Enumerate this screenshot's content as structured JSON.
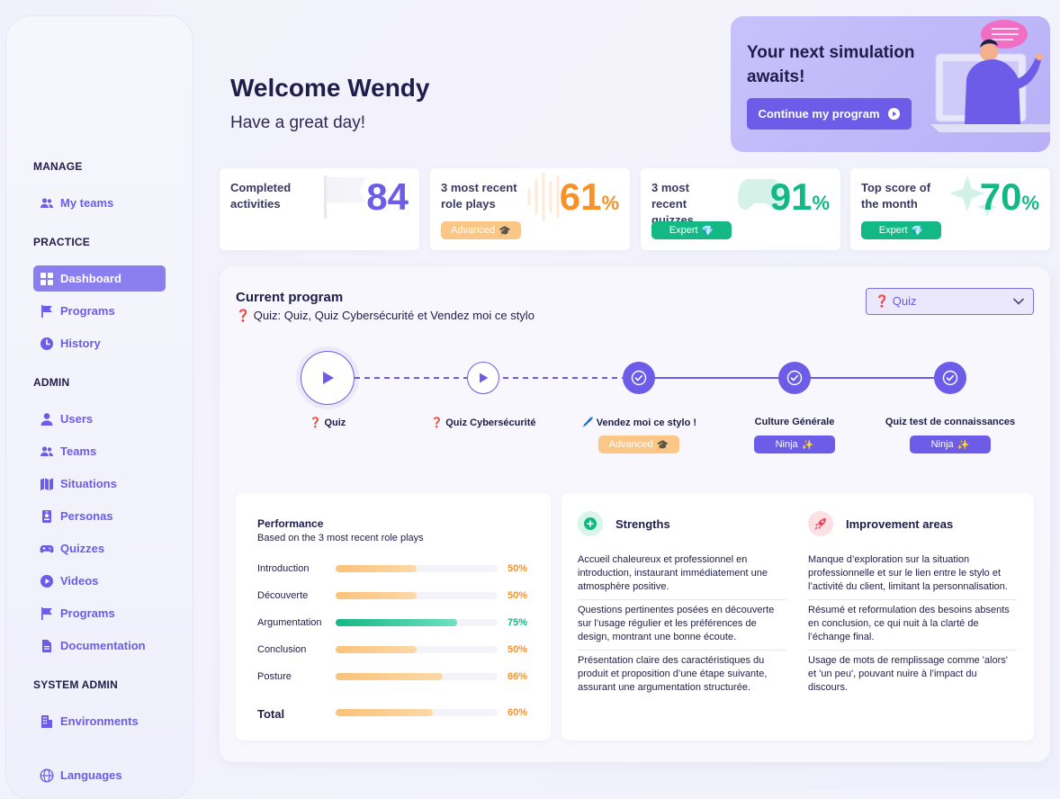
{
  "sidebar": {
    "sections": {
      "manage": "MANAGE",
      "practice": "PRACTICE",
      "admin": "ADMIN",
      "system_admin": "SYSTEM ADMIN"
    },
    "items": {
      "my_teams": "My teams",
      "dashboard": "Dashboard",
      "programs_practice": "Programs",
      "history": "History",
      "users": "Users",
      "teams": "Teams",
      "situations": "Situations",
      "personas": "Personas",
      "quizzes": "Quizzes",
      "videos": "Videos",
      "programs_admin": "Programs",
      "documentation": "Documentation",
      "environments": "Environments",
      "languages": "Languages"
    },
    "active_item": "Dashboard"
  },
  "welcome": {
    "title": "Welcome Wendy",
    "subtitle": "Have a great day!"
  },
  "simulation_card": {
    "title": "Your next simulation awaits!",
    "button": "Continue my program"
  },
  "stats": [
    {
      "label": "Completed activities",
      "value": "84",
      "unit": "",
      "color": "#6c5ce7"
    },
    {
      "label": "3 most recent role plays",
      "value": "61",
      "unit": "%",
      "color": "#f7922a",
      "badge": "Advanced"
    },
    {
      "label": "3 most recent quizzes",
      "value": "91",
      "unit": "%",
      "color": "#14b884",
      "badge": "Expert"
    },
    {
      "label": "Top score of the month",
      "value": "70",
      "unit": "%",
      "color": "#14b884",
      "badge": "Expert"
    }
  ],
  "program": {
    "title": "Current program",
    "subtitle": "❓ Quiz: Quiz, Quiz Cybersécurité et Vendez moi ce stylo",
    "select_value": "❓ Quiz",
    "steps": [
      {
        "label": "❓ Quiz",
        "state": "current",
        "badge": ""
      },
      {
        "label": "❓ Quiz Cybersécurité",
        "state": "play",
        "badge": ""
      },
      {
        "label": "🖊️ Vendez moi ce stylo !",
        "state": "done",
        "badge": "Advanced"
      },
      {
        "label": "Culture Générale",
        "state": "done",
        "badge": "Ninja"
      },
      {
        "label": "Quiz test de connaissances",
        "state": "done",
        "badge": "Ninja"
      }
    ]
  },
  "performance": {
    "title": "Performance",
    "subtitle": "Based on the 3 most recent role plays",
    "rows": [
      {
        "name": "Introduction",
        "value": "50%",
        "fraction": 0.5,
        "color": "#f7922a"
      },
      {
        "name": "Découverte",
        "value": "50%",
        "fraction": 0.5,
        "color": "#f7922a"
      },
      {
        "name": "Argumentation",
        "value": "75%",
        "fraction": 0.75,
        "color": "#14b884"
      },
      {
        "name": "Conclusion",
        "value": "50%",
        "fraction": 0.5,
        "color": "#f7922a"
      },
      {
        "name": "Posture",
        "value": "66%",
        "fraction": 0.66,
        "color": "#f7922a"
      }
    ],
    "total": {
      "name": "Total",
      "value": "60%",
      "fraction": 0.6,
      "color": "#f7922a"
    }
  },
  "feedback": {
    "strengths_title": "Strengths",
    "improvements_title": "Improvement areas",
    "strengths": [
      "Accueil chaleureux et professionnel en introduction, instaurant immédiatement une atmosphère positive.",
      "Questions pertinentes posées en découverte sur l’usage régulier et les préférences de design, montrant une bonne écoute.",
      "Présentation claire des caractéristiques du produit et proposition d’une étape suivante, assurant une argumentation structurée."
    ],
    "improvements": [
      "Manque d’exploration sur la situation professionnelle et sur le lien entre le stylo et l’activité du client, limitant la personnalisation.",
      "Résumé et reformulation des besoins absents en conclusion, ce qui nuit à la clarté de l’échange final.",
      "Usage de mots de remplissage comme 'alors' et 'un peu', pouvant nuire à l’impact du discours."
    ]
  }
}
